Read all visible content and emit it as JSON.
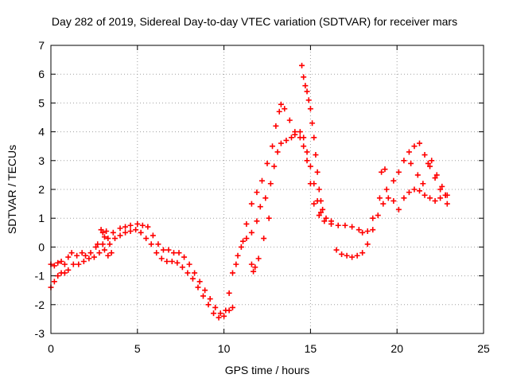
{
  "chart_data": {
    "type": "scatter",
    "title": "Day 282 of 2019, Sidereal Day-to-day VTEC variation (SDTVAR) for receiver mars",
    "xlabel": "GPS time / hours",
    "ylabel": "SDTVAR / TECUs",
    "xlim": [
      0,
      25
    ],
    "ylim": [
      -3,
      7
    ],
    "xticks": [
      "0",
      "5",
      "10",
      "15",
      "20",
      "25"
    ],
    "yticks": [
      "-3",
      "-2",
      "-1",
      "0",
      "1",
      "2",
      "3",
      "4",
      "5",
      "6",
      "7"
    ],
    "grid": true,
    "marker": "+",
    "series": [
      {
        "name": "SDTVAR",
        "color": "#ff0000",
        "points": [
          [
            0.0,
            -0.6
          ],
          [
            0.2,
            -0.65
          ],
          [
            0.4,
            -0.55
          ],
          [
            0.6,
            -0.5
          ],
          [
            0.8,
            -0.6
          ],
          [
            1.0,
            -0.35
          ],
          [
            1.2,
            -0.2
          ],
          [
            1.5,
            -0.3
          ],
          [
            1.8,
            -0.2
          ],
          [
            2.0,
            -0.3
          ],
          [
            2.3,
            -0.2
          ],
          [
            2.6,
            0.0
          ],
          [
            3.0,
            0.1
          ],
          [
            3.3,
            0.3
          ],
          [
            3.6,
            0.5
          ],
          [
            4.0,
            0.65
          ],
          [
            4.3,
            0.7
          ],
          [
            4.6,
            0.75
          ],
          [
            5.0,
            0.8
          ],
          [
            5.3,
            0.75
          ],
          [
            5.6,
            0.7
          ],
          [
            5.9,
            0.4
          ],
          [
            6.2,
            0.1
          ],
          [
            6.5,
            -0.1
          ],
          [
            6.8,
            -0.1
          ],
          [
            7.1,
            -0.2
          ],
          [
            7.4,
            -0.2
          ],
          [
            7.7,
            -0.35
          ],
          [
            8.0,
            -0.6
          ],
          [
            8.3,
            -0.9
          ],
          [
            8.6,
            -1.2
          ],
          [
            8.9,
            -1.5
          ],
          [
            9.2,
            -1.8
          ],
          [
            9.5,
            -2.1
          ],
          [
            9.8,
            -2.3
          ],
          [
            10.1,
            -2.2
          ],
          [
            10.3,
            -1.6
          ],
          [
            10.5,
            -0.9
          ],
          [
            10.8,
            -0.3
          ],
          [
            11.1,
            0.2
          ],
          [
            11.3,
            0.8
          ],
          [
            11.6,
            1.5
          ],
          [
            11.9,
            1.9
          ],
          [
            12.2,
            2.3
          ],
          [
            12.5,
            2.9
          ],
          [
            12.8,
            3.5
          ],
          [
            13.0,
            4.2
          ],
          [
            13.2,
            4.7
          ],
          [
            13.3,
            4.95
          ],
          [
            13.5,
            4.8
          ],
          [
            13.8,
            4.4
          ],
          [
            14.1,
            4.0
          ],
          [
            14.4,
            3.8
          ],
          [
            14.6,
            3.5
          ],
          [
            14.8,
            3.0
          ],
          [
            15.0,
            2.2
          ],
          [
            15.2,
            1.5
          ],
          [
            15.5,
            1.1
          ],
          [
            15.8,
            0.9
          ],
          [
            16.2,
            0.8
          ],
          [
            16.6,
            0.75
          ],
          [
            17.0,
            0.75
          ],
          [
            17.4,
            0.7
          ],
          [
            17.8,
            0.6
          ],
          [
            18.0,
            0.5
          ],
          [
            18.3,
            0.55
          ],
          [
            18.6,
            1.0
          ],
          [
            19.0,
            1.7
          ],
          [
            19.4,
            2.0
          ],
          [
            19.8,
            2.3
          ],
          [
            20.1,
            2.6
          ],
          [
            20.4,
            3.0
          ],
          [
            20.7,
            3.3
          ],
          [
            21.0,
            3.5
          ],
          [
            21.3,
            3.6
          ],
          [
            21.6,
            3.2
          ],
          [
            21.9,
            2.8
          ],
          [
            22.2,
            2.4
          ],
          [
            22.5,
            2.0
          ],
          [
            22.8,
            1.8
          ],
          [
            22.9,
            1.5
          ],
          [
            0.0,
            -1.4
          ],
          [
            0.2,
            -1.2
          ],
          [
            0.4,
            -1.0
          ],
          [
            0.6,
            -0.9
          ],
          [
            0.8,
            -0.9
          ],
          [
            1.0,
            -0.8
          ],
          [
            1.3,
            -0.6
          ],
          [
            1.6,
            -0.6
          ],
          [
            1.9,
            -0.5
          ],
          [
            2.2,
            -0.4
          ],
          [
            2.5,
            -0.35
          ],
          [
            2.8,
            -0.2
          ],
          [
            3.1,
            -0.1
          ],
          [
            3.4,
            0.1
          ],
          [
            3.7,
            0.3
          ],
          [
            4.0,
            0.4
          ],
          [
            4.3,
            0.5
          ],
          [
            4.6,
            0.55
          ],
          [
            4.9,
            0.6
          ],
          [
            5.2,
            0.5
          ],
          [
            5.5,
            0.3
          ],
          [
            5.8,
            0.1
          ],
          [
            6.1,
            -0.2
          ],
          [
            6.4,
            -0.4
          ],
          [
            6.7,
            -0.5
          ],
          [
            7.0,
            -0.5
          ],
          [
            7.3,
            -0.55
          ],
          [
            7.6,
            -0.7
          ],
          [
            7.9,
            -0.9
          ],
          [
            8.2,
            -1.1
          ],
          [
            8.5,
            -1.4
          ],
          [
            8.8,
            -1.7
          ],
          [
            9.1,
            -2.0
          ],
          [
            9.4,
            -2.3
          ],
          [
            9.7,
            -2.45
          ],
          [
            10.0,
            -2.4
          ],
          [
            10.3,
            -2.2
          ],
          [
            10.5,
            -2.1
          ],
          [
            10.7,
            -0.6
          ],
          [
            11.0,
            0.0
          ],
          [
            11.3,
            0.3
          ],
          [
            11.6,
            0.5
          ],
          [
            11.9,
            0.9
          ],
          [
            12.1,
            1.4
          ],
          [
            12.4,
            1.7
          ],
          [
            12.7,
            2.2
          ],
          [
            12.9,
            2.8
          ],
          [
            13.1,
            3.3
          ],
          [
            13.3,
            3.6
          ],
          [
            13.6,
            3.7
          ],
          [
            13.9,
            3.8
          ],
          [
            14.1,
            3.9
          ],
          [
            14.4,
            4.0
          ],
          [
            14.6,
            3.8
          ],
          [
            14.8,
            3.3
          ],
          [
            15.0,
            2.8
          ],
          [
            15.2,
            2.2
          ],
          [
            15.4,
            1.6
          ],
          [
            15.6,
            1.2
          ],
          [
            15.9,
            1.0
          ],
          [
            16.2,
            0.9
          ],
          [
            16.5,
            -0.1
          ],
          [
            16.8,
            -0.25
          ],
          [
            17.1,
            -0.3
          ],
          [
            17.4,
            -0.35
          ],
          [
            17.7,
            -0.3
          ],
          [
            18.0,
            -0.2
          ],
          [
            18.3,
            0.1
          ],
          [
            18.6,
            0.6
          ],
          [
            18.9,
            1.1
          ],
          [
            19.2,
            1.5
          ],
          [
            19.5,
            1.7
          ],
          [
            19.8,
            1.6
          ],
          [
            20.1,
            1.3
          ],
          [
            20.4,
            1.7
          ],
          [
            20.7,
            1.9
          ],
          [
            21.0,
            2.0
          ],
          [
            21.3,
            1.95
          ],
          [
            21.6,
            1.8
          ],
          [
            21.9,
            1.7
          ],
          [
            22.2,
            1.6
          ],
          [
            22.5,
            1.7
          ],
          [
            22.8,
            1.8
          ],
          [
            14.5,
            6.3
          ],
          [
            14.6,
            5.9
          ],
          [
            14.7,
            5.6
          ],
          [
            14.8,
            5.4
          ],
          [
            14.9,
            5.1
          ],
          [
            15.0,
            4.8
          ],
          [
            15.1,
            4.3
          ],
          [
            15.2,
            3.8
          ],
          [
            15.3,
            3.2
          ],
          [
            15.4,
            2.6
          ],
          [
            15.5,
            2.0
          ],
          [
            15.6,
            1.6
          ],
          [
            15.7,
            1.3
          ],
          [
            11.6,
            -0.6
          ],
          [
            11.7,
            -0.85
          ],
          [
            11.8,
            -0.7
          ],
          [
            12.0,
            -0.4
          ],
          [
            12.3,
            0.3
          ],
          [
            12.6,
            1.0
          ],
          [
            19.1,
            2.6
          ],
          [
            19.3,
            2.7
          ],
          [
            20.8,
            2.9
          ],
          [
            21.2,
            2.5
          ],
          [
            21.5,
            2.2
          ],
          [
            21.8,
            2.9
          ],
          [
            22.0,
            3.0
          ],
          [
            22.3,
            2.5
          ],
          [
            22.6,
            2.1
          ],
          [
            22.9,
            1.8
          ],
          [
            2.9,
            0.6
          ],
          [
            3.0,
            0.5
          ],
          [
            3.1,
            0.35
          ],
          [
            3.2,
            0.55
          ],
          [
            2.7,
            0.1
          ],
          [
            3.3,
            -0.3
          ],
          [
            3.5,
            -0.2
          ]
        ]
      }
    ]
  }
}
